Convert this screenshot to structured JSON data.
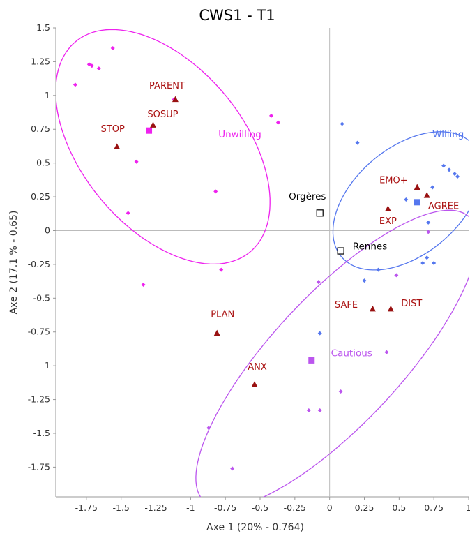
{
  "chart_data": {
    "type": "scatter",
    "title": "CWS1 - T1",
    "xlabel": "Axe 1 (20% - 0.764)",
    "ylabel": "Axe 2 (17.1 % - 0.65)",
    "xlim": [
      -1.97,
      1.0
    ],
    "ylim": [
      -1.97,
      1.5
    ],
    "xticks": [
      "-1.75",
      "-1.5",
      "-1.25",
      "-1",
      "-0.75",
      "-0.5",
      "-0.25",
      "0",
      "0.25",
      "0.5",
      "0.75",
      "1"
    ],
    "yticks": [
      "1.5",
      "1.25",
      "1",
      "0.75",
      "0.5",
      "0.25",
      "0",
      "-0.25",
      "-0.5",
      "-0.75",
      "-1",
      "-1.25",
      "-1.5",
      "-1.75"
    ],
    "grid": "origin-lines",
    "colors": {
      "unwilling": "#ee22ee",
      "willing": "#5577ee",
      "cautious": "#bb55ee",
      "variable": "#991111",
      "variable_label": "#aa1111",
      "site": "#000000"
    },
    "groups": [
      {
        "name": "Unwilling",
        "color": "#ee22ee",
        "centroid": [
          -1.3,
          0.74
        ],
        "label_pos": [
          -0.8,
          0.69
        ],
        "ellipse": {
          "cx": -1.2,
          "cy": 0.62,
          "rx": 1.0,
          "ry": 0.59,
          "angle_deg": -52
        },
        "points": [
          [
            -1.56,
            1.35
          ],
          [
            -1.73,
            1.23
          ],
          [
            -1.71,
            1.22
          ],
          [
            -1.66,
            1.2
          ],
          [
            -1.83,
            1.08
          ],
          [
            -1.12,
            0.97
          ],
          [
            -0.42,
            0.85
          ],
          [
            -0.37,
            0.8
          ],
          [
            -1.39,
            0.51
          ],
          [
            -0.82,
            0.29
          ],
          [
            -1.45,
            0.13
          ],
          [
            -1.34,
            -0.4
          ],
          [
            -0.78,
            -0.29
          ]
        ]
      },
      {
        "name": "Willing",
        "color": "#5577ee",
        "centroid": [
          0.63,
          0.21
        ],
        "label_pos": [
          0.74,
          0.69
        ],
        "ellipse": {
          "cx": 0.56,
          "cy": 0.22,
          "rx": 0.63,
          "ry": 0.39,
          "angle_deg": 42
        },
        "points": [
          [
            0.09,
            0.79
          ],
          [
            0.2,
            0.65
          ],
          [
            0.82,
            0.48
          ],
          [
            0.86,
            0.45
          ],
          [
            0.9,
            0.42
          ],
          [
            0.92,
            0.4
          ],
          [
            0.74,
            0.32
          ],
          [
            0.55,
            0.23
          ],
          [
            0.71,
            0.06
          ],
          [
            0.7,
            -0.2
          ],
          [
            0.67,
            -0.24
          ],
          [
            0.35,
            -0.29
          ],
          [
            0.25,
            -0.37
          ],
          [
            0.75,
            -0.24
          ],
          [
            -0.07,
            -0.76
          ]
        ]
      },
      {
        "name": "Cautious",
        "color": "#bb55ee",
        "centroid": [
          -0.13,
          -0.96
        ],
        "label_pos": [
          0.01,
          -0.93
        ],
        "ellipse": {
          "cx": 0.05,
          "cy": -0.95,
          "rx": 1.42,
          "ry": 0.47,
          "angle_deg": 48
        },
        "points": [
          [
            0.71,
            -0.01
          ],
          [
            0.48,
            -0.33
          ],
          [
            -0.08,
            -0.38
          ],
          [
            0.41,
            -0.9
          ],
          [
            0.08,
            -1.19
          ],
          [
            -0.15,
            -1.33
          ],
          [
            -0.07,
            -1.33
          ],
          [
            -0.87,
            -1.46
          ],
          [
            -0.7,
            -1.76
          ]
        ]
      }
    ],
    "variables": [
      {
        "name": "PARENT",
        "x": -1.11,
        "y": 0.97,
        "label_pos": [
          -1.17,
          1.05
        ]
      },
      {
        "name": "SOSUP",
        "x": -1.27,
        "y": 0.78,
        "label_pos": [
          -1.2,
          0.84
        ]
      },
      {
        "name": "STOP",
        "x": -1.53,
        "y": 0.62,
        "label_pos": [
          -1.56,
          0.73
        ]
      },
      {
        "name": "EMO+",
        "x": 0.63,
        "y": 0.32,
        "label_pos": [
          0.46,
          0.35
        ]
      },
      {
        "name": "AGREE",
        "x": 0.7,
        "y": 0.26,
        "label_pos": [
          0.82,
          0.16
        ]
      },
      {
        "name": "EXP",
        "x": 0.42,
        "y": 0.16,
        "label_pos": [
          0.42,
          0.05
        ]
      },
      {
        "name": "SAFE",
        "x": 0.31,
        "y": -0.58,
        "label_pos": [
          0.12,
          -0.57
        ]
      },
      {
        "name": "DIST",
        "x": 0.44,
        "y": -0.58,
        "label_pos": [
          0.59,
          -0.56
        ]
      },
      {
        "name": "PLAN",
        "x": -0.81,
        "y": -0.76,
        "label_pos": [
          -0.77,
          -0.64
        ]
      },
      {
        "name": "ANX",
        "x": -0.54,
        "y": -1.14,
        "label_pos": [
          -0.52,
          -1.03
        ]
      }
    ],
    "sites": [
      {
        "name": "Orgères",
        "x": -0.07,
        "y": 0.13,
        "label_pos": [
          -0.16,
          0.23
        ]
      },
      {
        "name": "Rennes",
        "x": 0.08,
        "y": -0.15,
        "label_pos": [
          0.29,
          -0.14
        ]
      }
    ]
  }
}
